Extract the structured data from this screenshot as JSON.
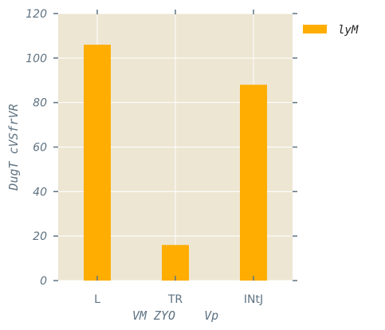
{
  "chart_data": {
    "type": "bar",
    "categories": [
      "L",
      "TR",
      "INtJ"
    ],
    "series": [
      {
        "name": "lyM",
        "values": [
          106,
          16,
          88
        ]
      }
    ],
    "xlabel": "VM ZYO    Vp",
    "ylabel": "DugT cVSfrVR",
    "ylim": [
      0,
      120
    ],
    "yticks": [
      0,
      20,
      40,
      60,
      80,
      100,
      120
    ],
    "grid": true,
    "legend": "top-right"
  },
  "colors": {
    "bar": "#FFAD00",
    "plot_background": "#EDE6D3",
    "grid": "#ffffff",
    "axis": "#5f7382"
  }
}
